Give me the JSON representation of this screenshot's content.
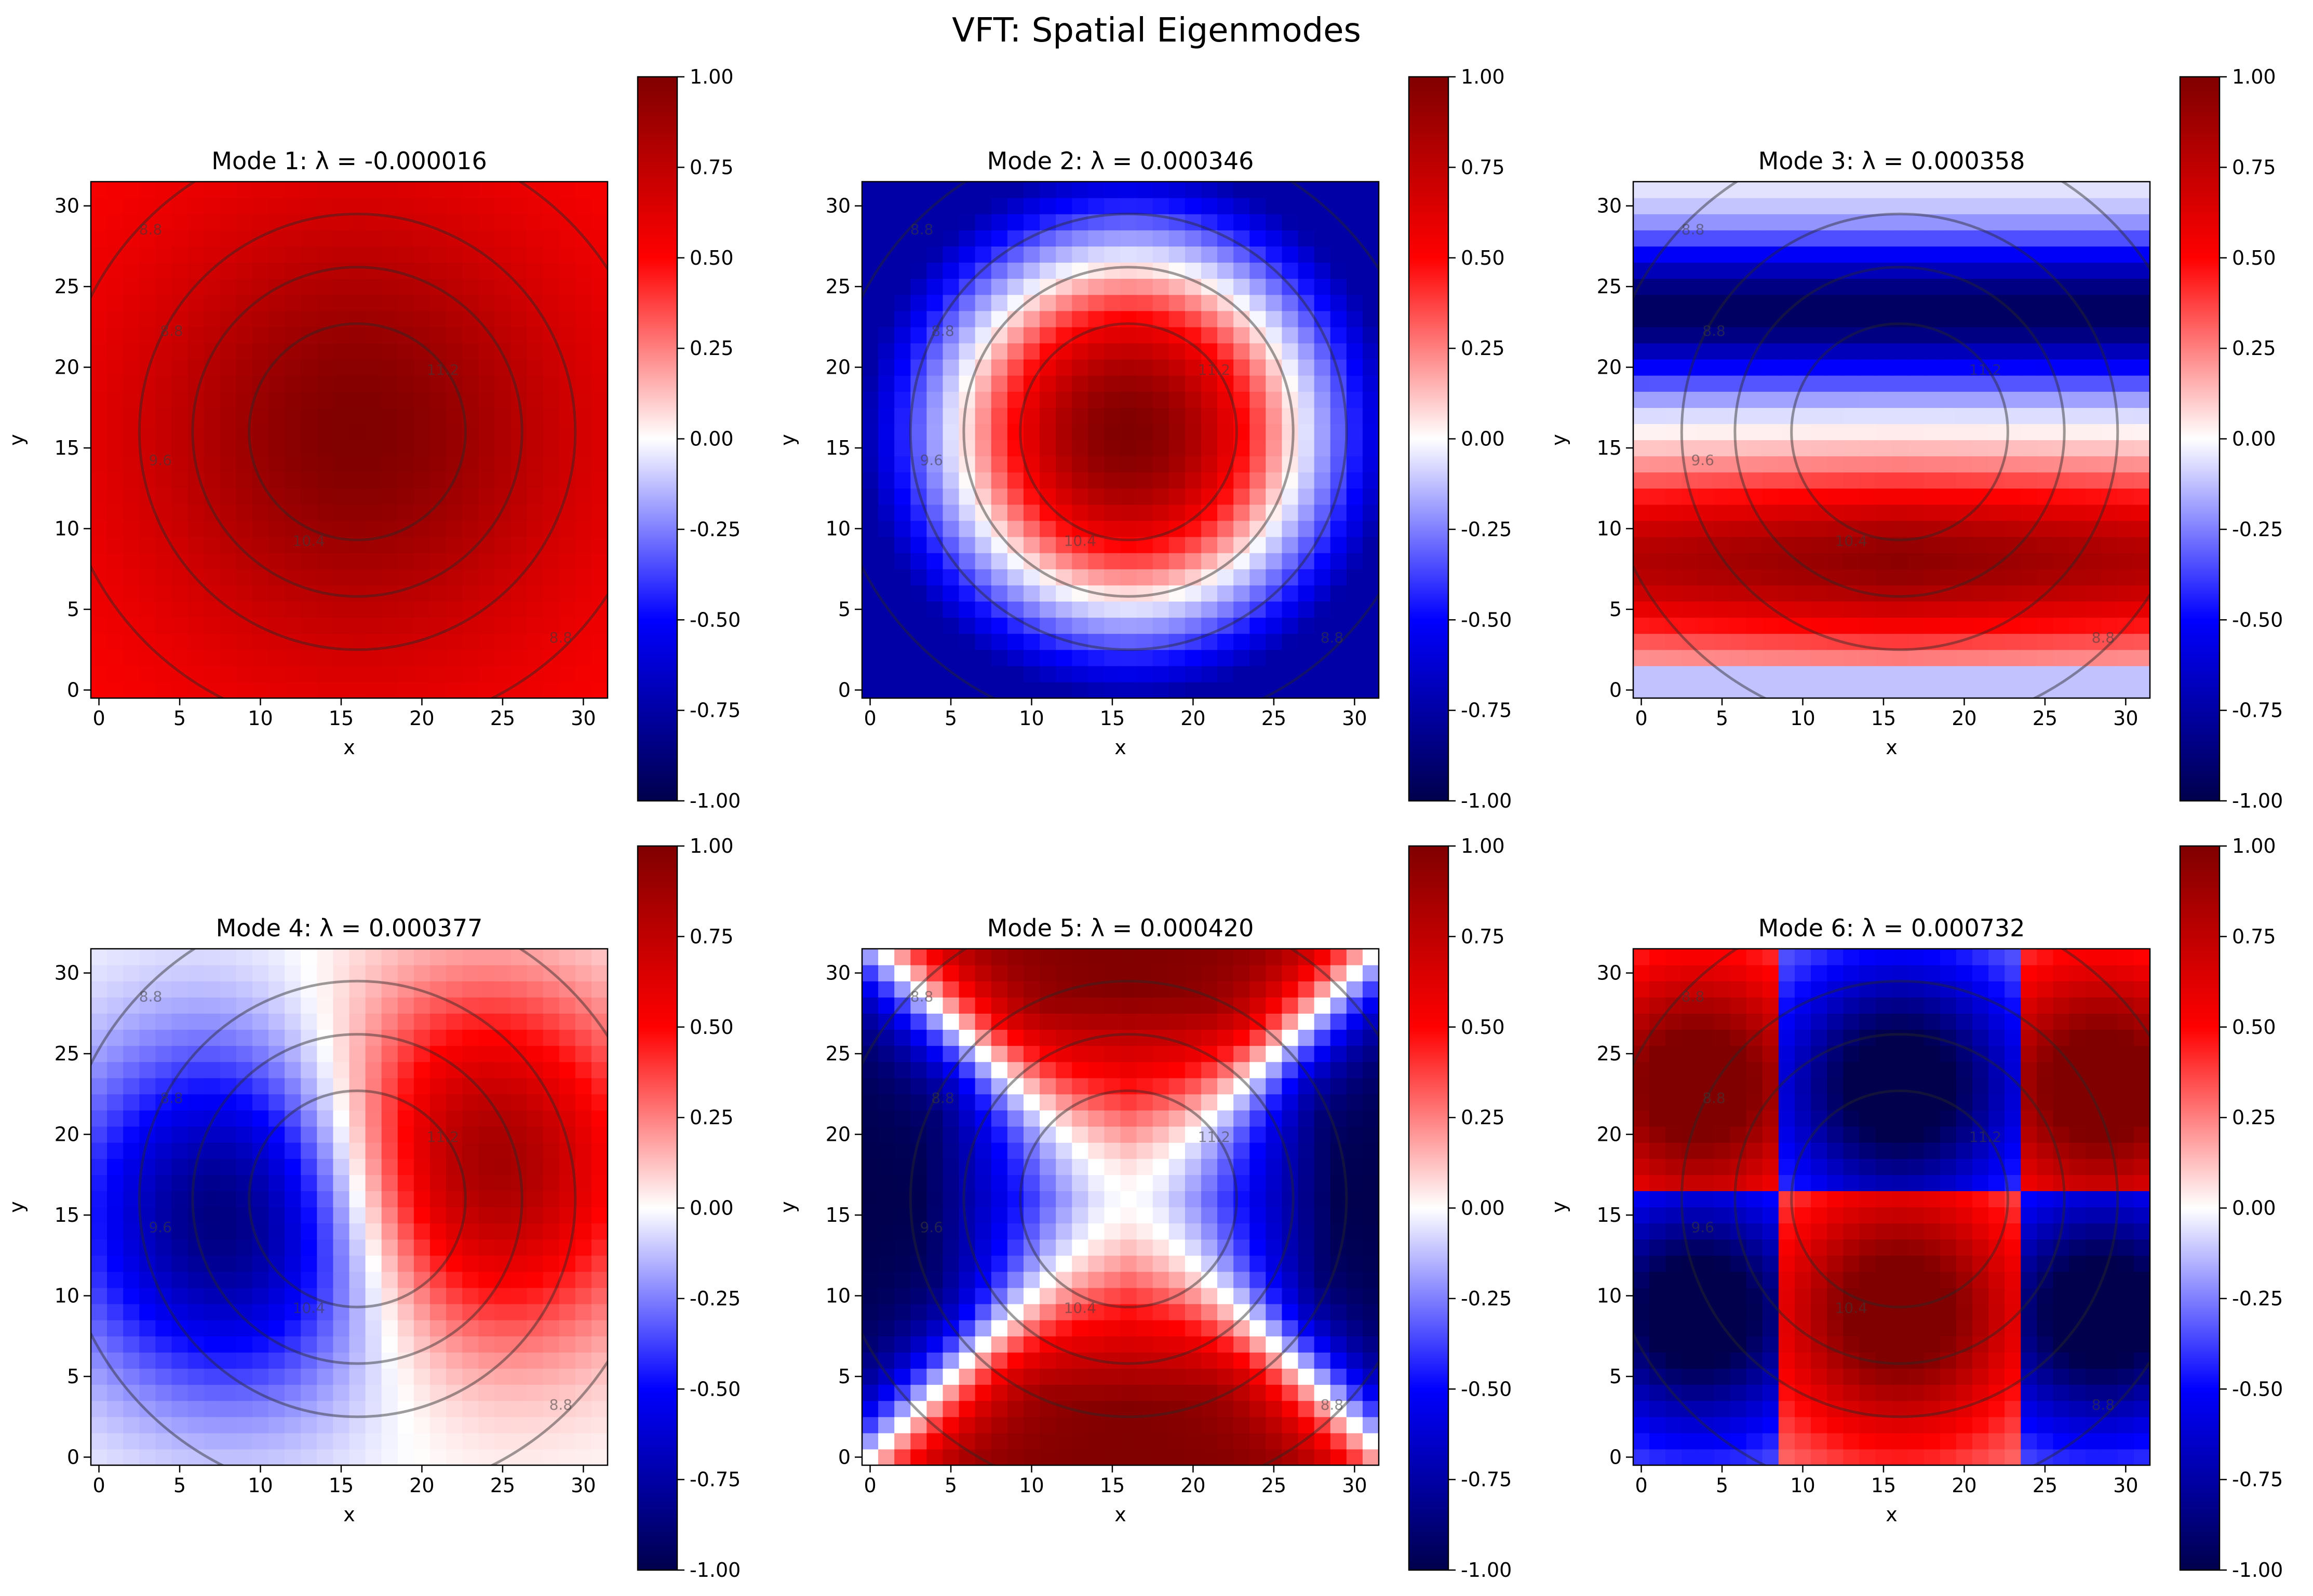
{
  "figure": {
    "title": "VFT: Spatial Eigenmodes"
  },
  "chart_data": [
    {
      "type": "heatmap",
      "title": "Mode 1: λ = -0.000016",
      "xlabel": "x",
      "ylabel": "y",
      "grid_size": 32,
      "xlim": [
        -0.5,
        31.5
      ],
      "ylim": [
        -0.5,
        31.5
      ],
      "xticks": [
        "0",
        "5",
        "10",
        "15",
        "20",
        "25",
        "30"
      ],
      "yticks": [
        "0",
        "5",
        "10",
        "15",
        "20",
        "25",
        "30"
      ],
      "colormap": "seismic",
      "clim": [
        -1,
        1
      ],
      "colorbar_ticks": [
        "-1.00",
        "-0.75",
        "-0.50",
        "-0.25",
        "0.00",
        "0.25",
        "0.50",
        "0.75",
        "1.00"
      ],
      "mode_shape": {
        "kind": "radial",
        "center": [
          16,
          16
        ],
        "center_value": 1.0,
        "edge_value": 0.5
      },
      "contour_levels": [
        "8.8",
        "9.6",
        "10.4",
        "11.2"
      ],
      "contour_center": [
        16,
        16
      ],
      "contour_radii": [
        18.5,
        13.5,
        10.2,
        6.7
      ]
    },
    {
      "type": "heatmap",
      "title": "Mode 2: λ = 0.000346",
      "xlabel": "x",
      "ylabel": "y",
      "grid_size": 32,
      "xlim": [
        -0.5,
        31.5
      ],
      "ylim": [
        -0.5,
        31.5
      ],
      "xticks": [
        "0",
        "5",
        "10",
        "15",
        "20",
        "25",
        "30"
      ],
      "yticks": [
        "0",
        "5",
        "10",
        "15",
        "20",
        "25",
        "30"
      ],
      "colormap": "seismic",
      "clim": [
        -1,
        1
      ],
      "colorbar_ticks": [
        "-1.00",
        "-0.75",
        "-0.50",
        "-0.25",
        "0.00",
        "0.25",
        "0.50",
        "0.75",
        "1.00"
      ],
      "mode_shape": {
        "kind": "radial_node",
        "center": [
          16,
          16
        ],
        "node_radius": 10.5,
        "center_value": 1.0,
        "edge_value": -0.75
      },
      "contour_levels": [
        "8.8",
        "9.6",
        "10.4",
        "11.2"
      ],
      "contour_center": [
        16,
        16
      ],
      "contour_radii": [
        18.5,
        13.5,
        10.2,
        6.7
      ]
    },
    {
      "type": "heatmap",
      "title": "Mode 3: λ = 0.000358",
      "xlabel": "x",
      "ylabel": "y",
      "grid_size": 32,
      "xlim": [
        -0.5,
        31.5
      ],
      "ylim": [
        -0.5,
        31.5
      ],
      "xticks": [
        "0",
        "5",
        "10",
        "15",
        "20",
        "25",
        "30"
      ],
      "yticks": [
        "0",
        "5",
        "10",
        "15",
        "20",
        "25",
        "30"
      ],
      "colormap": "seismic",
      "clim": [
        -1,
        1
      ],
      "colorbar_ticks": [
        "-1.00",
        "-0.75",
        "-0.50",
        "-0.25",
        "0.00",
        "0.25",
        "0.50",
        "0.75",
        "1.00"
      ],
      "mode_shape": {
        "kind": "horizontal_bands",
        "positive_center_y": 8,
        "negative_center_y": 23,
        "node_y": 15.5
      },
      "contour_levels": [
        "8.8",
        "9.6",
        "10.4",
        "11.2"
      ],
      "contour_center": [
        16,
        16
      ],
      "contour_radii": [
        18.5,
        13.5,
        10.2,
        6.7
      ]
    },
    {
      "type": "heatmap",
      "title": "Mode 4: λ = 0.000377",
      "xlabel": "x",
      "ylabel": "y",
      "grid_size": 32,
      "xlim": [
        -0.5,
        31.5
      ],
      "ylim": [
        -0.5,
        31.5
      ],
      "xticks": [
        "0",
        "5",
        "10",
        "15",
        "20",
        "25",
        "30"
      ],
      "yticks": [
        "0",
        "5",
        "10",
        "15",
        "20",
        "25",
        "30"
      ],
      "colormap": "seismic",
      "clim": [
        -1,
        1
      ],
      "colorbar_ticks": [
        "-1.00",
        "-0.75",
        "-0.50",
        "-0.25",
        "0.00",
        "0.25",
        "0.50",
        "0.75",
        "1.00"
      ],
      "mode_shape": {
        "kind": "vertical_dipole",
        "negative_center": [
          9,
          15
        ],
        "positive_center": [
          23,
          18
        ],
        "node_x": 16
      },
      "contour_levels": [
        "8.8",
        "9.6",
        "10.4",
        "11.2"
      ],
      "contour_center": [
        16,
        16
      ],
      "contour_radii": [
        18.5,
        13.5,
        10.2,
        6.7
      ]
    },
    {
      "type": "heatmap",
      "title": "Mode 5: λ = 0.000420",
      "xlabel": "x",
      "ylabel": "y",
      "grid_size": 32,
      "xlim": [
        -0.5,
        31.5
      ],
      "ylim": [
        -0.5,
        31.5
      ],
      "xticks": [
        "0",
        "5",
        "10",
        "15",
        "20",
        "25",
        "30"
      ],
      "yticks": [
        "0",
        "5",
        "10",
        "15",
        "20",
        "25",
        "30"
      ],
      "colormap": "seismic",
      "clim": [
        -1,
        1
      ],
      "colorbar_ticks": [
        "-1.00",
        "-0.75",
        "-0.50",
        "-0.25",
        "0.00",
        "0.25",
        "0.50",
        "0.75",
        "1.00"
      ],
      "mode_shape": {
        "kind": "quadrupole",
        "positive": "top_bottom",
        "negative": "left_right"
      },
      "contour_levels": [
        "8.8",
        "9.6",
        "10.4",
        "11.2"
      ],
      "contour_center": [
        16,
        16
      ],
      "contour_radii": [
        18.5,
        13.5,
        10.2,
        6.7
      ]
    },
    {
      "type": "heatmap",
      "title": "Mode 6: λ = 0.000732",
      "xlabel": "x",
      "ylabel": "y",
      "grid_size": 32,
      "xlim": [
        -0.5,
        31.5
      ],
      "ylim": [
        -0.5,
        31.5
      ],
      "xticks": [
        "0",
        "5",
        "10",
        "15",
        "20",
        "25",
        "30"
      ],
      "yticks": [
        "0",
        "5",
        "10",
        "15",
        "20",
        "25",
        "30"
      ],
      "colormap": "seismic",
      "clim": [
        -1,
        1
      ],
      "colorbar_ticks": [
        "-1.00",
        "-0.75",
        "-0.50",
        "-0.25",
        "0.00",
        "0.25",
        "0.50",
        "0.75",
        "1.00"
      ],
      "mode_shape": {
        "kind": "checkerboard_3x2",
        "x_nodes": [
          8.5,
          23.5
        ],
        "y_node": 16
      },
      "contour_levels": [
        "8.8",
        "9.6",
        "10.4",
        "11.2"
      ],
      "contour_center": [
        16,
        16
      ],
      "contour_radii": [
        18.5,
        13.5,
        10.2,
        6.7
      ]
    }
  ]
}
